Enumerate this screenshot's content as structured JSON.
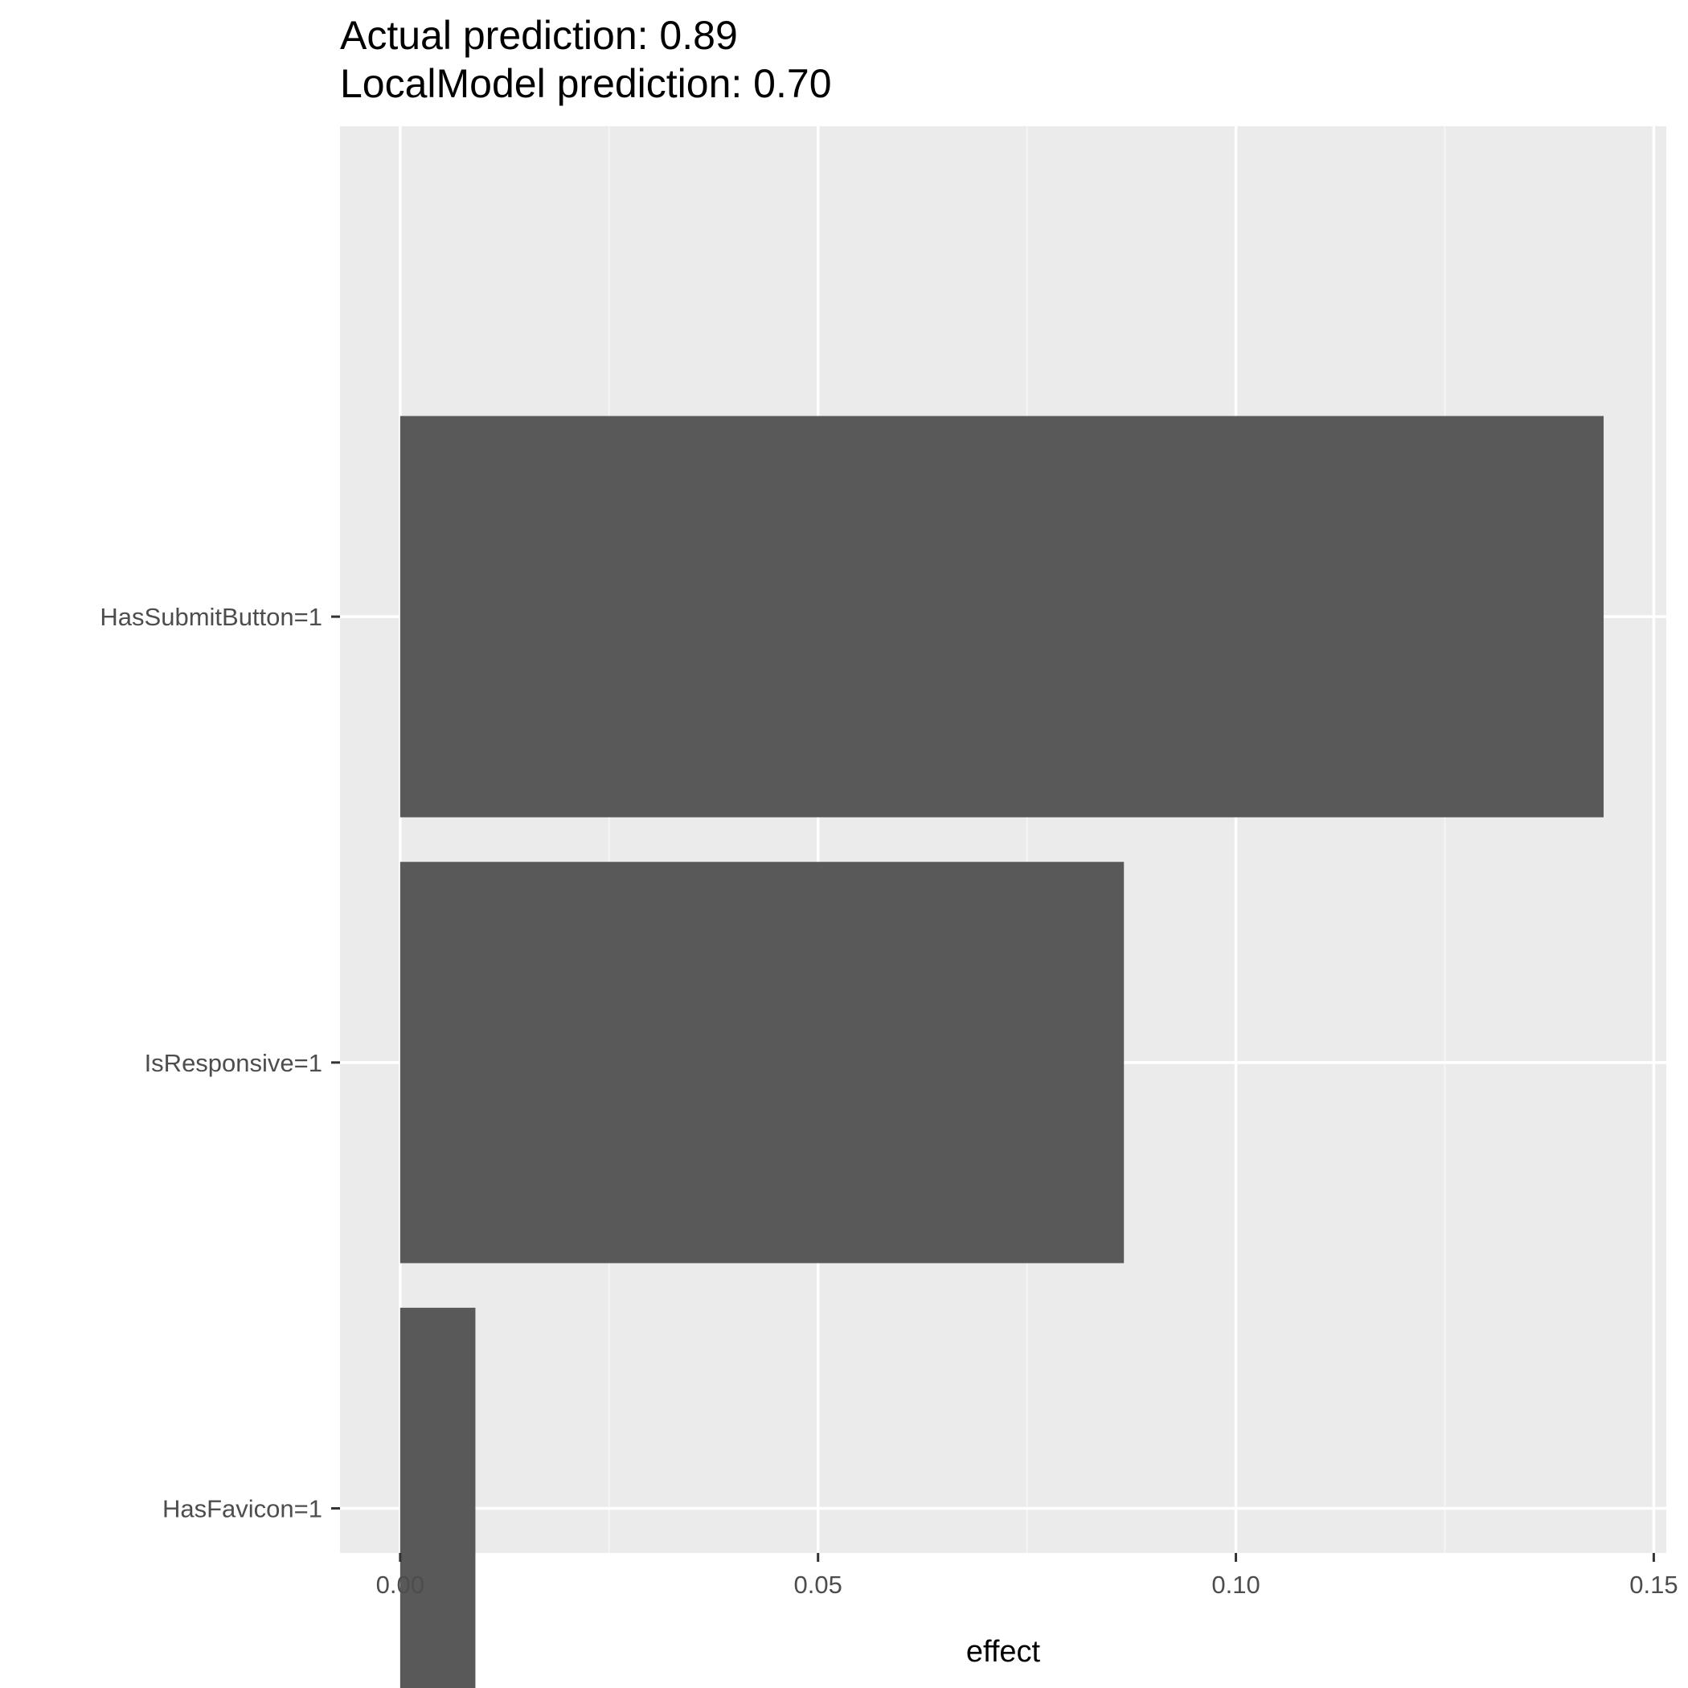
{
  "chart_data": {
    "type": "bar",
    "orientation": "horizontal",
    "title": "Actual prediction: 0.89",
    "subtitle": "LocalModel prediction: 0.70",
    "xlabel": "effect",
    "ylabel": "",
    "categories": [
      "HasSubmitButton=1",
      "IsResponsive=1",
      "HasFavicon=1"
    ],
    "values": [
      0.144,
      0.0866,
      0.009
    ],
    "xlim": [
      -0.0072,
      0.1515
    ],
    "x_ticks": [
      0.0,
      0.05,
      0.1,
      0.15
    ],
    "x_tick_labels": [
      "0.00",
      "0.05",
      "0.10",
      "0.15"
    ],
    "grid": true,
    "legend": "none",
    "colors": {
      "bar": "#595959",
      "panel": "#ebebeb",
      "grid_major": "#ffffff",
      "grid_minor": "#f5f5f5"
    }
  }
}
